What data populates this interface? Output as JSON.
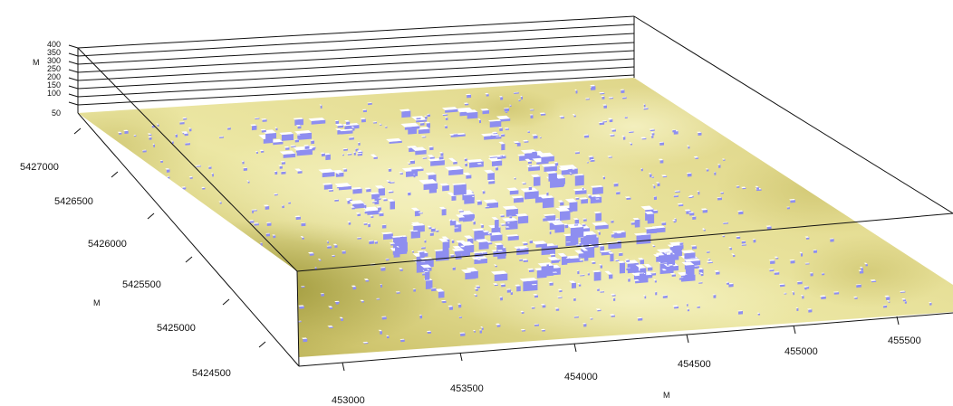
{
  "view": {
    "z_axis": {
      "unit": "M",
      "ticks": [
        "400",
        "350",
        "300",
        "250",
        "200",
        "150",
        "100",
        "50"
      ]
    },
    "y_axis": {
      "unit": "M",
      "ticks": [
        "5427000",
        "5426500",
        "5426000",
        "5425500",
        "5425000",
        "5424500"
      ]
    },
    "x_axis": {
      "unit": "M",
      "ticks": [
        "453000",
        "453500",
        "454000",
        "454500",
        "455000",
        "455500"
      ]
    },
    "colors": {
      "terrain_light": "#eeeaa8",
      "terrain_mid": "#d8cf82",
      "terrain_dark": "#a8a040",
      "building_side": "#8e8ef0",
      "building_roof": "#ffffff"
    }
  }
}
